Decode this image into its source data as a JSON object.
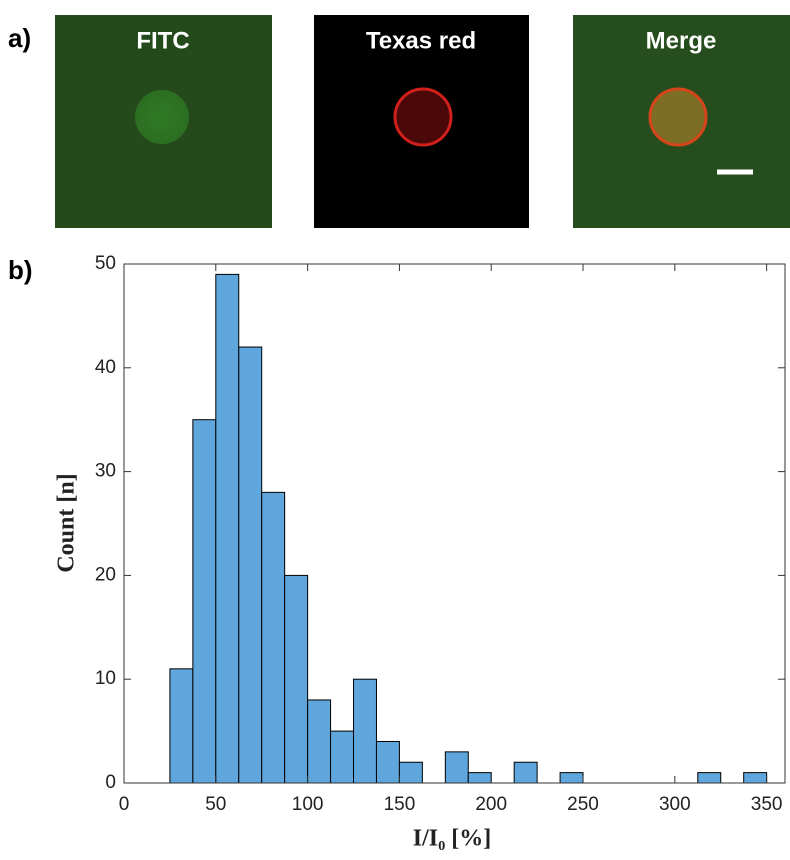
{
  "panel_labels": [
    "a)",
    "b)"
  ],
  "images": [
    {
      "title": "FITC"
    },
    {
      "title": "Texas red"
    },
    {
      "title": "Merge"
    }
  ],
  "chart_data": {
    "type": "histogram",
    "xlabel": "I/I₀ [%]",
    "ylabel": "Count [n]",
    "bins": [
      25,
      37.5,
      50,
      62.5,
      75,
      87.5,
      100,
      112.5,
      125,
      137.5,
      150,
      162.5,
      175,
      187.5,
      200,
      212.5,
      225,
      237.5,
      250,
      262.5,
      275,
      287.5,
      300,
      312.5,
      325,
      337.5,
      350
    ],
    "values": [
      11,
      35,
      49,
      42,
      28,
      20,
      8,
      5,
      10,
      4,
      2,
      0,
      3,
      1,
      0,
      2,
      0,
      1,
      0,
      0,
      0,
      0,
      0,
      1,
      0,
      1
    ],
    "color": "#5fa6dc",
    "xlim": [
      0,
      360
    ],
    "ylim": [
      0,
      50
    ],
    "xticks": [
      0,
      50,
      100,
      150,
      200,
      250,
      300,
      350
    ],
    "yticks": [
      0,
      10,
      20,
      30,
      40,
      50
    ]
  }
}
